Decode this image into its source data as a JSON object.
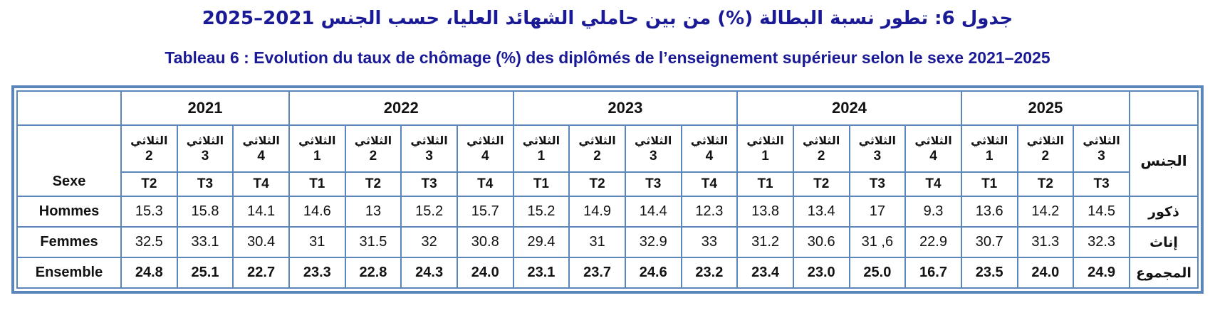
{
  "titles": {
    "arabic": "جدول 6: تطور نسبة البطالة (%) من بين حاملي الشهائد العليا، حسب الجنس 2021–2025",
    "french": "Tableau 6 : Evolution du taux de chômage (%) des diplômés de l’enseignement supérieur selon le sexe 2021–2025"
  },
  "colors": {
    "title_navy": "#1a1a96",
    "table_border_blue": "#5b86bc",
    "cell_text": "#121212"
  },
  "table": {
    "corner_left": "",
    "corner_right": "",
    "sexe_label": "Sexe",
    "gender_label_ar": "الجنس",
    "trimester_word_ar": "الثلاثي",
    "years": [
      {
        "label": "2021",
        "span": 3
      },
      {
        "label": "2022",
        "span": 4
      },
      {
        "label": "2023",
        "span": 4
      },
      {
        "label": "2024",
        "span": 4
      },
      {
        "label": "2025",
        "span": 3
      }
    ],
    "trimester_numbers": [
      "2",
      "3",
      "4",
      "1",
      "2",
      "3",
      "4",
      "1",
      "2",
      "3",
      "4",
      "1",
      "2",
      "3",
      "4",
      "1",
      "2",
      "3"
    ],
    "t_labels": [
      "T2",
      "T3",
      "T4",
      "T1",
      "T2",
      "T3",
      "T4",
      "T1",
      "T2",
      "T3",
      "T4",
      "T1",
      "T2",
      "T3",
      "T4",
      "T1",
      "T2",
      "T3"
    ],
    "rows": [
      {
        "label_fr": "Hommes",
        "label_ar": "ذكور",
        "bold": false,
        "values": [
          "15.3",
          "15.8",
          "14.1",
          "14.6",
          "13",
          "15.2",
          "15.7",
          "15.2",
          "14.9",
          "14.4",
          "12.3",
          "13.8",
          "13.4",
          "17",
          "9.3",
          "13.6",
          "14.2",
          "14.5"
        ]
      },
      {
        "label_fr": "Femmes",
        "label_ar": "إناث",
        "bold": false,
        "values": [
          "32.5",
          "33.1",
          "30.4",
          "31",
          "31.5",
          "32",
          "30.8",
          "29.4",
          "31",
          "32.9",
          "33",
          "31.2",
          "30.6",
          "31 ,6",
          "22.9",
          "30.7",
          "31.3",
          "32.3"
        ]
      },
      {
        "label_fr": "Ensemble",
        "label_ar": "المجموع",
        "bold": true,
        "values": [
          "24.8",
          "25.1",
          "22.7",
          "23.3",
          "22.8",
          "24.3",
          "24.0",
          "23.1",
          "23.7",
          "24.6",
          "23.2",
          "23.4",
          "23.0",
          "25.0",
          "16.7",
          "23.5",
          "24.0",
          "24.9"
        ]
      }
    ]
  }
}
